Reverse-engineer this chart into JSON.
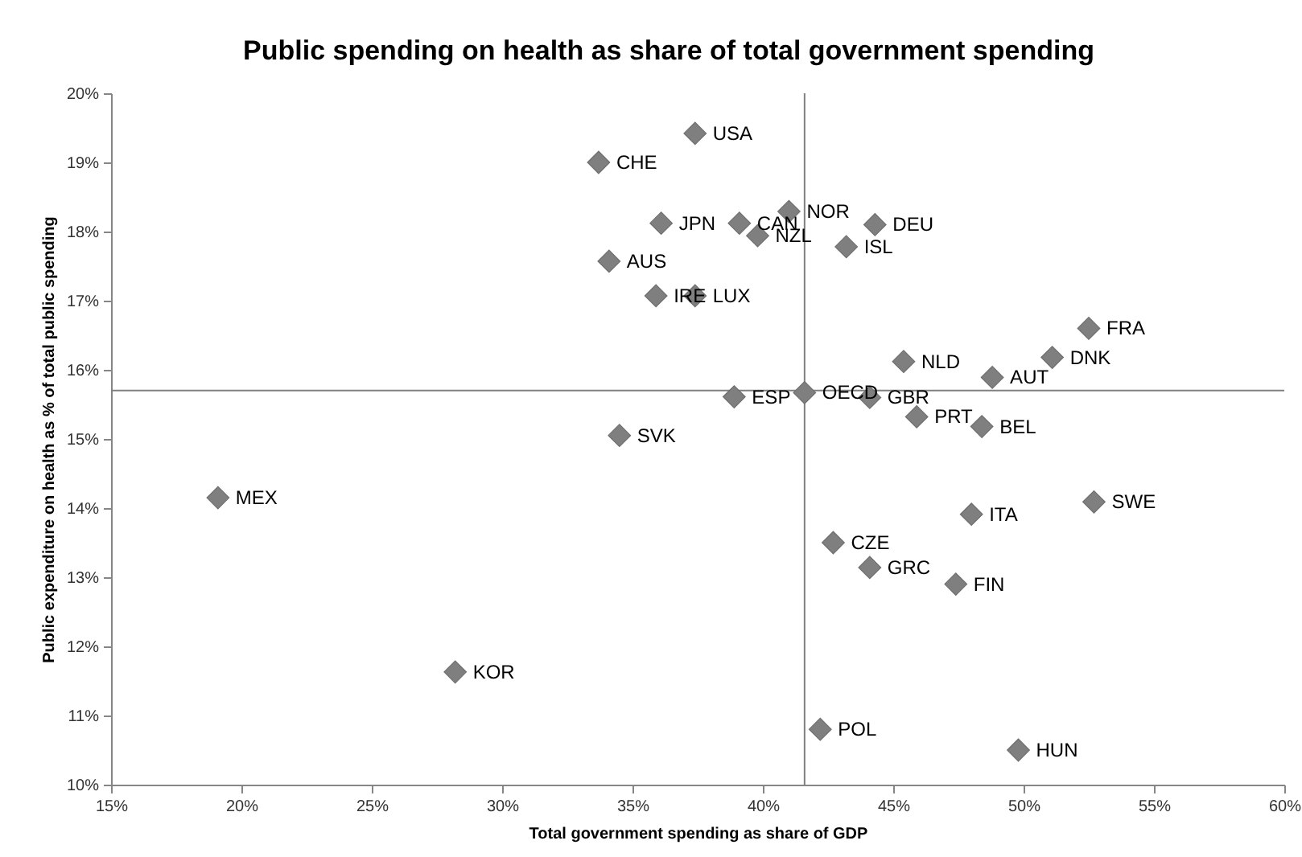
{
  "chart_data": {
    "type": "scatter",
    "title": "Public spending on health as share of total government spending",
    "xlabel": "Total government spending as share of GDP",
    "ylabel": "Public expenditure on health as % of total public spending",
    "x": [
      37.4,
      33.7,
      36.1,
      39.1,
      41.0,
      39.8,
      44.3,
      43.2,
      34.1,
      35.9,
      37.4,
      52.5,
      51.1,
      45.4,
      48.8,
      38.9,
      41.6,
      44.1,
      45.9,
      48.4,
      34.5,
      19.1,
      48.0,
      52.7,
      42.7,
      44.1,
      47.4,
      28.2,
      42.2,
      49.8
    ],
    "series": [
      {
        "color": "#7f7f7f",
        "values": [
          19.42,
          19.0,
          18.12,
          18.12,
          18.29,
          17.94,
          18.1,
          17.78,
          17.57,
          17.07,
          17.07,
          16.6,
          16.18,
          16.12,
          15.89,
          15.61,
          15.67,
          15.6,
          15.32,
          15.18,
          15.05,
          14.15,
          13.91,
          14.09,
          13.5,
          13.14,
          12.9,
          11.63,
          10.8,
          10.5
        ]
      }
    ],
    "annotations": [
      {
        "text": "USA",
        "x": 37.4,
        "y": 19.42
      },
      {
        "text": "CHE",
        "x": 33.7,
        "y": 19.0
      },
      {
        "text": "JPN",
        "x": 36.1,
        "y": 18.12
      },
      {
        "text": "CAN",
        "x": 39.1,
        "y": 18.12
      },
      {
        "text": "NOR",
        "x": 41.0,
        "y": 18.29
      },
      {
        "text": "NZL",
        "x": 39.8,
        "y": 17.94
      },
      {
        "text": "DEU",
        "x": 44.3,
        "y": 18.1
      },
      {
        "text": "ISL",
        "x": 43.2,
        "y": 17.78
      },
      {
        "text": "AUS",
        "x": 34.1,
        "y": 17.57
      },
      {
        "text": "IRE",
        "x": 35.9,
        "y": 17.07
      },
      {
        "text": "LUX",
        "x": 37.4,
        "y": 17.07
      },
      {
        "text": "FRA",
        "x": 52.5,
        "y": 16.6
      },
      {
        "text": "DNK",
        "x": 51.1,
        "y": 16.18
      },
      {
        "text": "NLD",
        "x": 45.4,
        "y": 16.12
      },
      {
        "text": "AUT",
        "x": 48.8,
        "y": 15.89
      },
      {
        "text": "ESP",
        "x": 38.9,
        "y": 15.61
      },
      {
        "text": "OECD",
        "x": 41.6,
        "y": 15.67
      },
      {
        "text": "GBR",
        "x": 44.1,
        "y": 15.6
      },
      {
        "text": "PRT",
        "x": 45.9,
        "y": 15.32
      },
      {
        "text": "BEL",
        "x": 48.4,
        "y": 15.18
      },
      {
        "text": "SVK",
        "x": 34.5,
        "y": 15.05
      },
      {
        "text": "MEX",
        "x": 19.1,
        "y": 14.15
      },
      {
        "text": "ITA",
        "x": 48.0,
        "y": 13.91
      },
      {
        "text": "SWE",
        "x": 52.7,
        "y": 14.09
      },
      {
        "text": "CZE",
        "x": 42.7,
        "y": 13.5
      },
      {
        "text": "GRC",
        "x": 44.1,
        "y": 13.14
      },
      {
        "text": "FIN",
        "x": 47.4,
        "y": 12.9
      },
      {
        "text": "KOR",
        "x": 28.2,
        "y": 11.63
      },
      {
        "text": "POL",
        "x": 42.2,
        "y": 10.8
      },
      {
        "text": "HUN",
        "x": 49.8,
        "y": 10.5
      }
    ],
    "ref_lines": [
      {
        "axis": "x",
        "value": 41.6,
        "color": "#808080"
      },
      {
        "axis": "y",
        "value": 15.7,
        "color": "#808080"
      }
    ],
    "xlim": [
      15,
      60
    ],
    "xticks": [
      {
        "value": 15,
        "label": "15%"
      },
      {
        "value": 20,
        "label": "20%"
      },
      {
        "value": 25,
        "label": "25%"
      },
      {
        "value": 30,
        "label": "30%"
      },
      {
        "value": 35,
        "label": "35%"
      },
      {
        "value": 40,
        "label": "40%"
      },
      {
        "value": 45,
        "label": "45%"
      },
      {
        "value": 50,
        "label": "50%"
      },
      {
        "value": 55,
        "label": "55%"
      },
      {
        "value": 60,
        "label": "60%"
      }
    ],
    "ylim": [
      10,
      20
    ],
    "yticks": [
      {
        "value": 10,
        "label": "10%"
      },
      {
        "value": 11,
        "label": "11%"
      },
      {
        "value": 12,
        "label": "12%"
      },
      {
        "value": 13,
        "label": "13%"
      },
      {
        "value": 14,
        "label": "14%"
      },
      {
        "value": 15,
        "label": "15%"
      },
      {
        "value": 16,
        "label": "16%"
      },
      {
        "value": 17,
        "label": "17%"
      },
      {
        "value": 18,
        "label": "18%"
      },
      {
        "value": 19,
        "label": "19%"
      },
      {
        "value": 20,
        "label": "20%"
      }
    ],
    "grid": false,
    "marker": "diamond"
  }
}
